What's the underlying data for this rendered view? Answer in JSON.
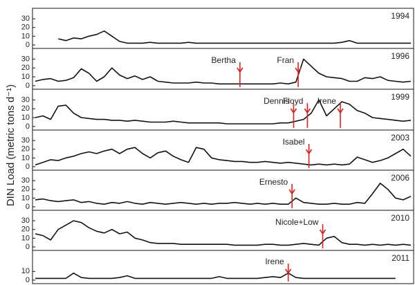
{
  "chart_data": [
    {
      "type": "line",
      "title": "1994",
      "ylabel": "DIN Load (metric tons d⁻¹)",
      "color": "#111111",
      "ylim": [
        -4,
        42
      ],
      "yticks": [
        0,
        10,
        20,
        30
      ],
      "values": [
        null,
        null,
        null,
        7,
        5,
        8,
        7,
        10,
        12,
        16,
        10,
        4,
        2,
        2,
        2,
        3,
        2,
        2,
        2,
        2,
        3,
        2,
        2,
        2,
        2,
        2,
        2,
        2,
        2,
        2,
        2,
        2,
        2,
        2,
        2,
        2,
        2,
        2,
        2,
        2,
        3,
        5,
        2,
        2,
        2,
        2,
        2,
        2,
        2,
        2
      ],
      "annotations": []
    },
    {
      "type": "line",
      "title": "1996",
      "color": "#111111",
      "ylim": [
        -4,
        42
      ],
      "yticks": [
        0,
        10,
        20,
        30
      ],
      "values": [
        5,
        7,
        8,
        5,
        6,
        9,
        19,
        14,
        5,
        10,
        20,
        12,
        8,
        11,
        7,
        10,
        5,
        4,
        3,
        3,
        3,
        4,
        3,
        3,
        2,
        2,
        2,
        2,
        2,
        2,
        2,
        2,
        3,
        2,
        4,
        30,
        22,
        14,
        10,
        9,
        8,
        5,
        5,
        9,
        8,
        10,
        6,
        5,
        4,
        5
      ],
      "annotations": [
        {
          "text": "Bertha",
          "x": 26.7
        },
        {
          "text": "Fran",
          "x": 34.3
        }
      ]
    },
    {
      "type": "line",
      "title": "1999",
      "color": "#111111",
      "ylim": [
        -4,
        42
      ],
      "yticks": [
        0,
        10,
        20,
        30
      ],
      "values": [
        10,
        12,
        8,
        23,
        24,
        15,
        10,
        9,
        8,
        8,
        7,
        7,
        6,
        7,
        6,
        5,
        5,
        5,
        6,
        5,
        4,
        4,
        4,
        4,
        4,
        3,
        3,
        3,
        3,
        3,
        3,
        3,
        4,
        4,
        6,
        8,
        15,
        30,
        12,
        20,
        28,
        25,
        18,
        15,
        10,
        9,
        8,
        7,
        6,
        7
      ],
      "annotations": [
        {
          "text": "Dennis",
          "x": 33.7
        },
        {
          "text": "Floyd",
          "x": 35.5
        },
        {
          "text": "Irene",
          "x": 39.8
        }
      ]
    },
    {
      "type": "line",
      "title": "2003",
      "color": "#111111",
      "ylim": [
        -4,
        42
      ],
      "yticks": [
        0,
        10,
        20,
        30
      ],
      "values": [
        2,
        5,
        8,
        7,
        10,
        12,
        15,
        17,
        15,
        18,
        20,
        15,
        20,
        22,
        15,
        10,
        16,
        18,
        12,
        8,
        5,
        22,
        20,
        10,
        8,
        7,
        6,
        6,
        5,
        5,
        6,
        5,
        4,
        5,
        4,
        3,
        2,
        3,
        2,
        3,
        2,
        3,
        11,
        8,
        5,
        7,
        10,
        15,
        20,
        12
      ],
      "annotations": [
        {
          "text": "Isabel",
          "x": 35.7
        }
      ]
    },
    {
      "type": "line",
      "title": "2006",
      "color": "#111111",
      "ylim": [
        -4,
        42
      ],
      "yticks": [
        0,
        10,
        20,
        30
      ],
      "values": [
        8,
        9,
        7,
        6,
        7,
        8,
        5,
        6,
        4,
        3,
        5,
        4,
        6,
        4,
        3,
        5,
        4,
        3,
        4,
        5,
        4,
        3,
        4,
        3,
        4,
        4,
        5,
        4,
        3,
        4,
        3,
        4,
        3,
        3,
        10,
        5,
        4,
        3,
        3,
        4,
        3,
        3,
        5,
        4,
        15,
        27,
        20,
        10,
        8,
        12
      ],
      "annotations": [
        {
          "text": "Ernesto",
          "x": 33.5
        }
      ]
    },
    {
      "type": "line",
      "title": "2010",
      "color": "#111111",
      "ylim": [
        -4,
        42
      ],
      "yticks": [
        0,
        10,
        20,
        30
      ],
      "values": [
        15,
        13,
        8,
        20,
        25,
        30,
        28,
        22,
        18,
        16,
        20,
        15,
        17,
        10,
        8,
        5,
        4,
        4,
        4,
        3,
        3,
        3,
        3,
        3,
        3,
        3,
        2,
        2,
        2,
        2,
        3,
        3,
        2,
        2,
        3,
        4,
        3,
        2,
        10,
        12,
        5,
        3,
        3,
        2,
        3,
        2,
        3,
        2,
        3,
        2
      ],
      "annotations": [
        {
          "text": "Nicole+Low",
          "x": 37.5
        }
      ]
    },
    {
      "type": "line",
      "title": "2011",
      "color": "#111111",
      "ylim": [
        -4,
        34
      ],
      "yticks": [
        0,
        10
      ],
      "values": [
        2,
        2,
        2,
        2,
        2,
        8,
        3,
        2,
        2,
        2,
        2,
        3,
        5,
        2,
        2,
        2,
        2,
        2,
        2,
        2,
        2,
        2,
        2,
        2,
        4,
        2,
        2,
        2,
        2,
        2,
        3,
        4,
        3,
        8,
        3,
        2,
        2,
        2,
        2,
        2,
        2,
        2,
        2,
        2,
        2,
        2,
        2,
        2,
        null,
        null
      ],
      "annotations": [
        {
          "text": "Irene",
          "x": 33
        }
      ]
    }
  ]
}
